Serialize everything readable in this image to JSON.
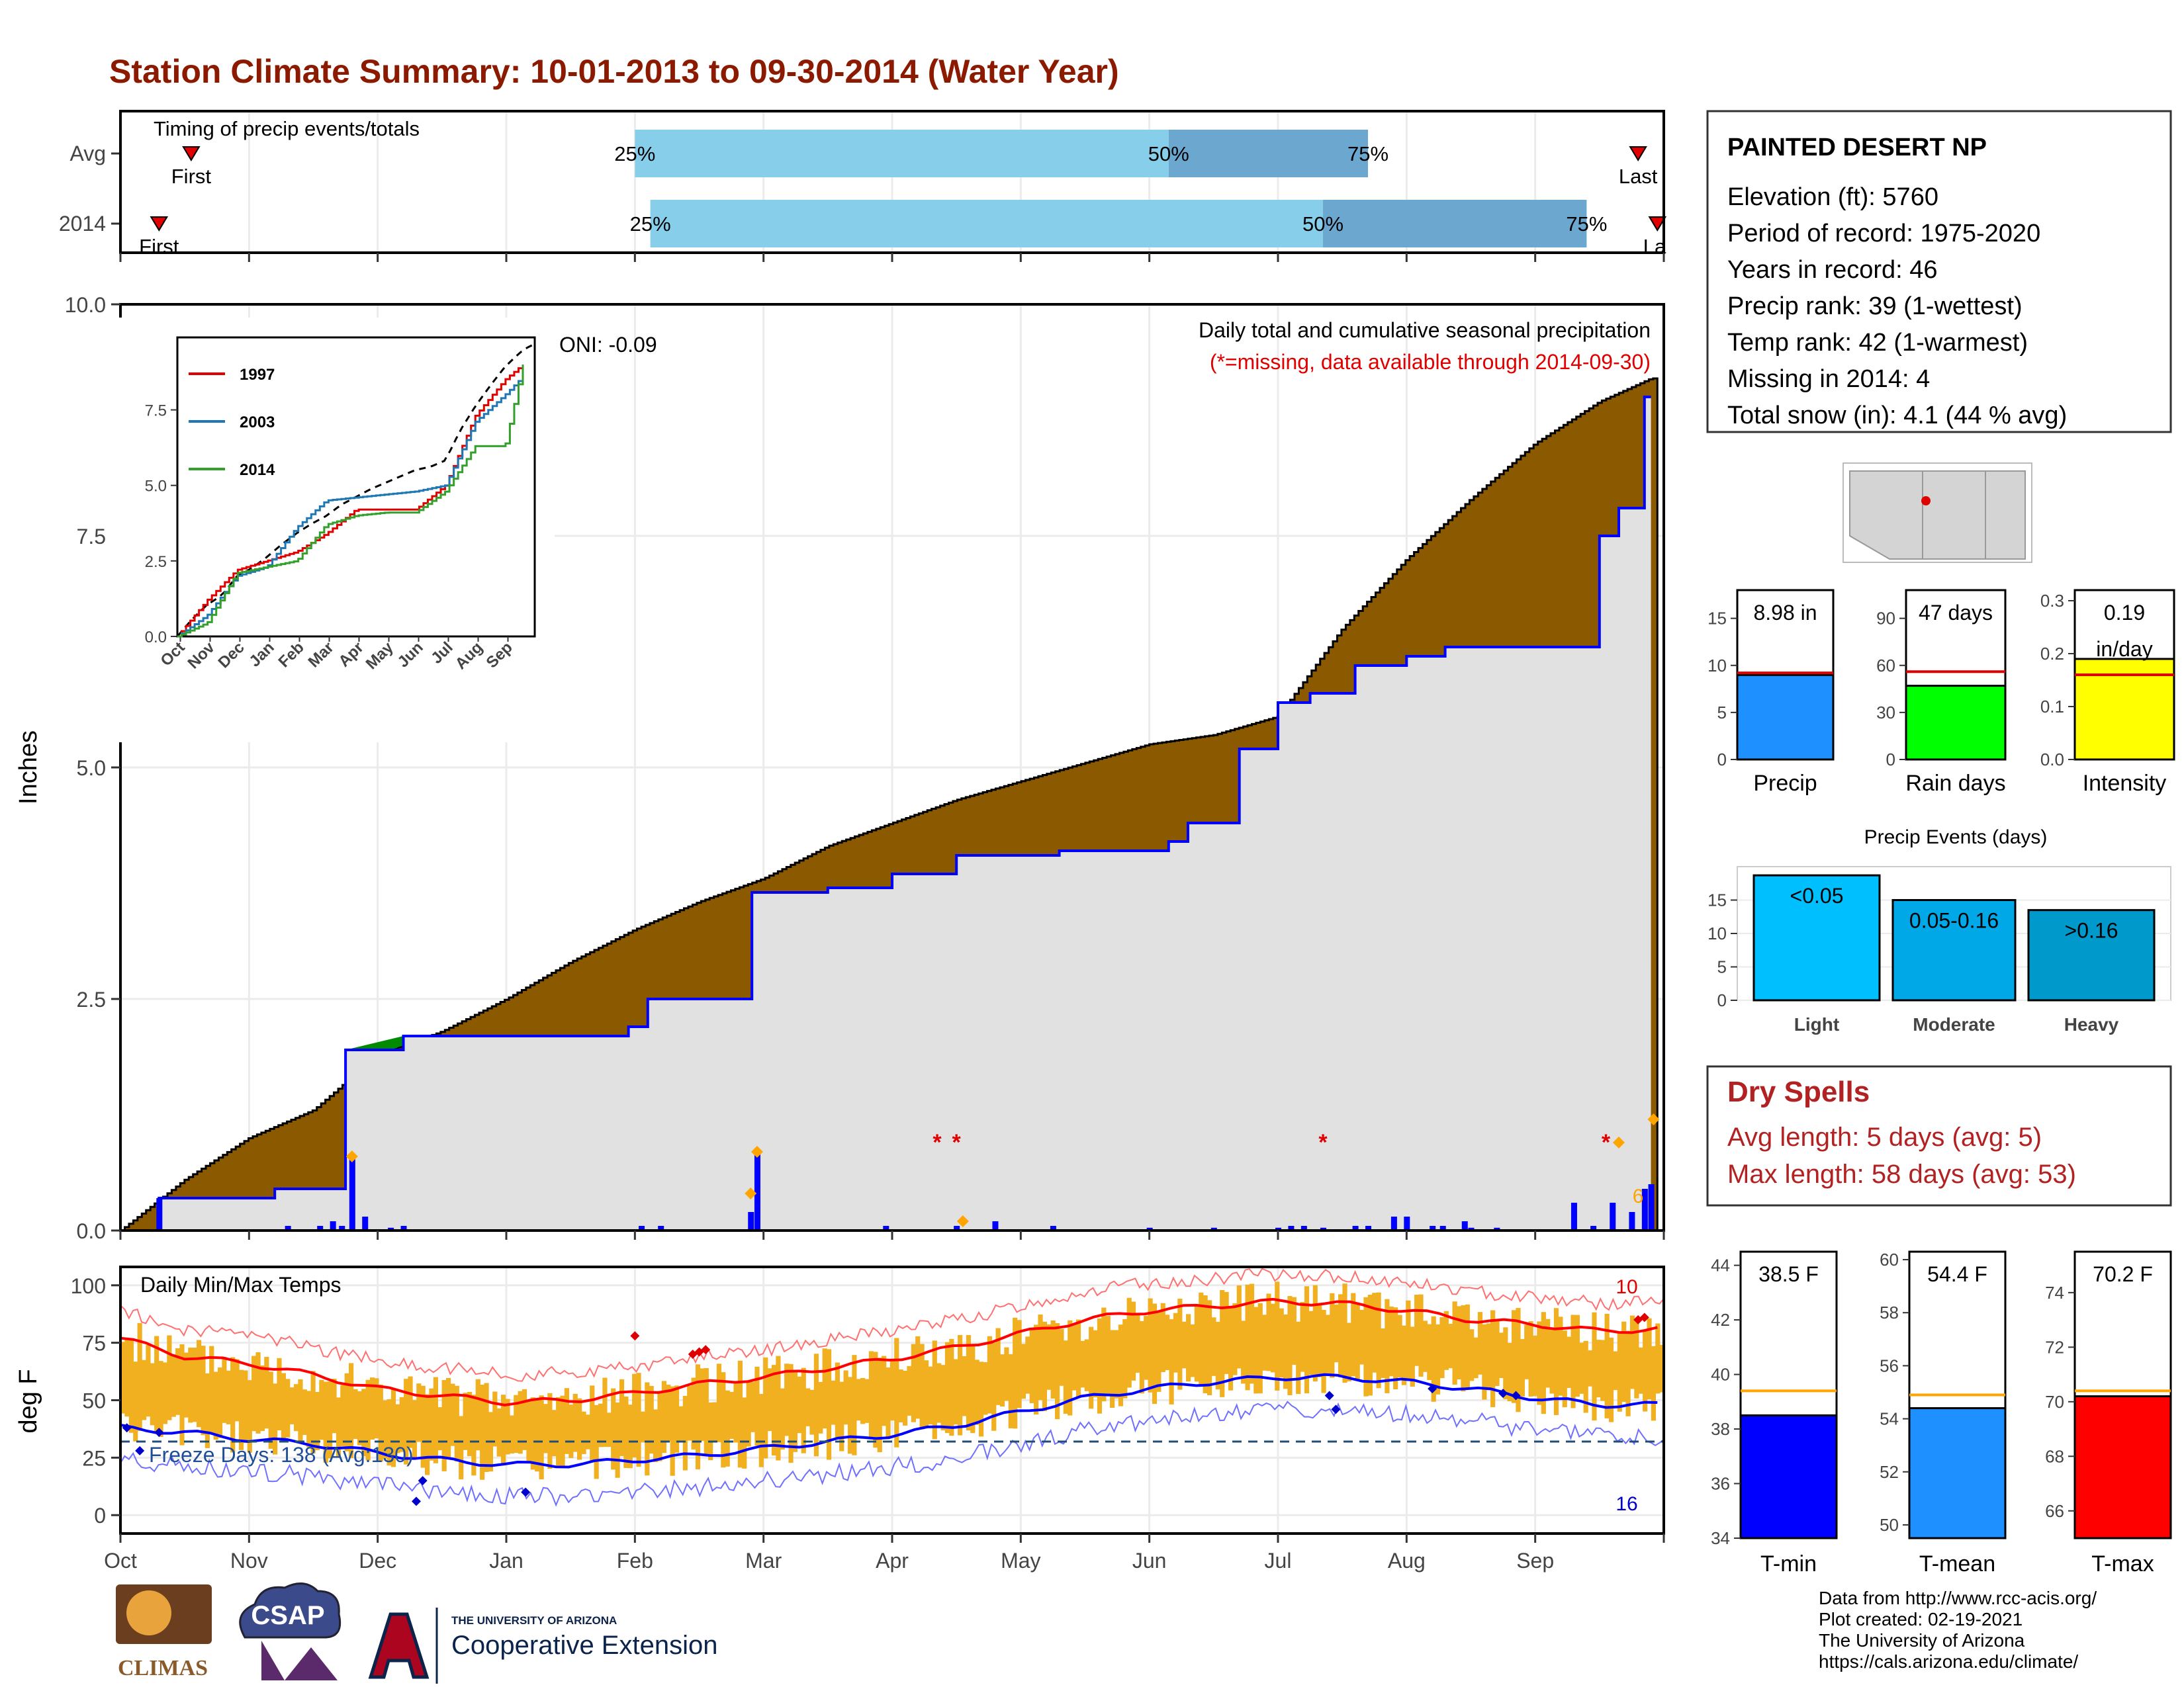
{
  "title": "Station Climate Summary: 10-01-2013 to 09-30-2014 (Water Year)",
  "colors": {
    "title": "#8B1A00",
    "cum_fill": "#8B5A00",
    "green_fill": "#008B00",
    "bg_fill": "#E1E1E1",
    "blue_line": "#0000FF",
    "light_blue": "#87CEEB",
    "mid_blue": "#6BA7CF",
    "tmax_line": "#FF0000",
    "tmin_line": "#0000FF",
    "bars_temp": "#F0B020",
    "dry_red": "#B22222"
  },
  "timing": {
    "label": "Timing of precip events/totals",
    "rows": [
      {
        "name": "Avg",
        "first_label": "First",
        "last_label": "Last",
        "p25": "25%",
        "p50": "50%",
        "p75": "75%",
        "first_month": 0.55,
        "p25_month": 4.0,
        "p50_month": 8.15,
        "p75_month": 9.7,
        "last_month": 11.8
      },
      {
        "name": "2014",
        "first_label": "First",
        "last_label": "La",
        "p25": "25%",
        "p50": "50%",
        "p75": "75%",
        "first_month": 0.3,
        "p25_month": 4.12,
        "p50_month": 9.35,
        "p75_month": 11.4,
        "last_month": 11.95
      }
    ]
  },
  "months": [
    "Oct",
    "Nov",
    "Dec",
    "Jan",
    "Feb",
    "Mar",
    "Apr",
    "May",
    "Jun",
    "Jul",
    "Aug",
    "Sep"
  ],
  "main": {
    "ylabel": "Inches",
    "yticks": [
      "0.0",
      "2.5",
      "5.0",
      "7.5",
      "10.0"
    ],
    "heading": "Daily total and cumulative seasonal precipitation",
    "subheading": "(*=missing, data available through 2014-09-30)",
    "oni": "ONI: -0.09",
    "count_label": "6"
  },
  "inset": {
    "legend": [
      "1997",
      "2003",
      "2014"
    ],
    "yticks": [
      "0.0",
      "2.5",
      "5.0",
      "7.5"
    ],
    "months": [
      "Oct",
      "Nov",
      "Dec",
      "Jan",
      "Feb",
      "Mar",
      "Apr",
      "May",
      "Jun",
      "Jul",
      "Aug",
      "Sep"
    ]
  },
  "temps": {
    "ylabel": "deg F",
    "label": "Daily Min/Max Temps",
    "yticks": [
      "0",
      "25",
      "50",
      "75",
      "100"
    ],
    "freeze": "Freeze Days: 138 (Avg:130)",
    "hot_count": "10",
    "cold_count": "16"
  },
  "station": {
    "name": "PAINTED DESERT NP",
    "lines": [
      "Elevation (ft): 5760",
      "Period of record: 1975-2020",
      "Years in record: 46",
      "Precip rank: 39 (1-wettest)",
      "Temp rank: 42 (1-warmest)",
      "Missing in 2014: 4",
      "Total snow (in): 4.1 (44 % avg)"
    ]
  },
  "summary_bars": [
    {
      "label": "Precip",
      "value_text": "8.98 in",
      "value": 8.98,
      "avg": 9.2,
      "max": 18,
      "ticks": [
        "0",
        "5",
        "10",
        "15"
      ],
      "tickvals": [
        0,
        5,
        10,
        15
      ],
      "color": "#1E90FF"
    },
    {
      "label": "Rain days",
      "value_text": "47 days",
      "value": 47,
      "avg": 56,
      "max": 108,
      "ticks": [
        "0",
        "30",
        "60",
        "90"
      ],
      "tickvals": [
        0,
        30,
        60,
        90
      ],
      "color": "#00FF00"
    },
    {
      "label": "Intensity",
      "value_text": "0.19",
      "value_text2": "in/day",
      "value": 0.19,
      "avg": 0.16,
      "max": 0.32,
      "ticks": [
        "0.0",
        "0.1",
        "0.2",
        "0.3"
      ],
      "tickvals": [
        0,
        0.1,
        0.2,
        0.3
      ],
      "color": "#FFFF00"
    }
  ],
  "events": {
    "title": "Precip Events (days)",
    "yticks": [
      "0",
      "5",
      "10",
      "15"
    ],
    "bars": [
      {
        "label": "Light",
        "value_label": "<0.05",
        "value": 18.7,
        "color": "#00BFFF"
      },
      {
        "label": "Moderate",
        "value_label": "0.05-0.16",
        "value": 15.0,
        "color": "#00A8E8"
      },
      {
        "label": "Heavy",
        "value_label": ">0.16",
        "value": 13.5,
        "color": "#0099CC"
      }
    ]
  },
  "dry": {
    "title": "Dry Spells",
    "avg": "Avg length: 5 days (avg: 5)",
    "max": "Max length: 58 days (avg: 53)"
  },
  "temp_bars": [
    {
      "label": "T-min",
      "value_text": "38.5 F",
      "value": 38.5,
      "avg": 39.4,
      "min": 34,
      "max": 44.5,
      "ticks": [
        "34",
        "36",
        "38",
        "40",
        "42",
        "44"
      ],
      "tickvals": [
        34,
        36,
        38,
        40,
        42,
        44
      ],
      "color": "#0000FF"
    },
    {
      "label": "T-mean",
      "value_text": "54.4 F",
      "value": 54.4,
      "avg": 54.9,
      "min": 49.5,
      "max": 60.3,
      "ticks": [
        "50",
        "52",
        "54",
        "56",
        "58",
        "60"
      ],
      "tickvals": [
        50,
        52,
        54,
        56,
        58,
        60
      ],
      "color": "#1E90FF"
    },
    {
      "label": "T-max",
      "value_text": "70.2 F",
      "value": 70.2,
      "avg": 70.4,
      "min": 65,
      "max": 75.5,
      "ticks": [
        "66",
        "68",
        "70",
        "72",
        "74"
      ],
      "tickvals": [
        66,
        68,
        70,
        72,
        74
      ],
      "color": "#FF0000"
    }
  ],
  "footer": [
    "Data from http://www.rcc-acis.org/",
    "Plot created: 02-19-2021",
    "The University of Arizona",
    "https://cals.arizona.edu/climate/"
  ],
  "logos": {
    "climas": "CLIMAS",
    "csap": "CSAP",
    "ua_small": "THE UNIVERSITY OF ARIZONA",
    "ua_big": "Cooperative Extension"
  },
  "chart_data": [
    {
      "type": "area",
      "title": "Daily total and cumulative seasonal precipitation",
      "ylabel": "Inches",
      "ylim": [
        0,
        10
      ],
      "x_unit": "month index from Oct 1",
      "series": [
        {
          "name": "2014",
          "x": [
            0,
            0.3,
            1.0,
            1.2,
            1.7,
            1.75,
            2.2,
            3.05,
            3.95,
            4.1,
            4.9,
            4.91,
            5.4,
            5.5,
            6.0,
            6.5,
            7.3,
            8.0,
            8.15,
            8.3,
            8.7,
            9.0,
            9.25,
            9.35,
            9.6,
            10.0,
            10.3,
            10.5,
            10.7,
            11.3,
            11.35,
            11.5,
            11.65,
            11.85,
            11.9
          ],
          "y": [
            0,
            0.35,
            0.35,
            0.45,
            0.45,
            1.95,
            2.1,
            2.1,
            2.2,
            2.5,
            2.5,
            3.65,
            3.65,
            3.7,
            3.85,
            4.05,
            4.1,
            4.1,
            4.2,
            4.4,
            5.2,
            5.7,
            5.8,
            5.8,
            6.1,
            6.2,
            6.3,
            6.3,
            6.3,
            6.3,
            6.3,
            7.5,
            7.8,
            9.0,
            9.0
          ]
        },
        {
          "name": "Avg",
          "x": [
            0,
            0.5,
            1,
            1.5,
            2,
            2.5,
            3,
            3.5,
            4,
            4.5,
            5,
            5.5,
            6,
            6.5,
            7,
            7.5,
            8,
            8.5,
            9,
            9.5,
            10,
            10.5,
            11,
            11.5,
            11.9
          ],
          "y": [
            0,
            0.55,
            1.0,
            1.3,
            1.9,
            2.15,
            2.5,
            2.9,
            3.25,
            3.55,
            3.8,
            4.15,
            4.4,
            4.65,
            4.85,
            5.05,
            5.25,
            5.35,
            5.55,
            6.5,
            7.25,
            7.9,
            8.5,
            8.95,
            9.2
          ]
        }
      ]
    },
    {
      "type": "line",
      "title": "",
      "series": [
        {
          "name": "1997",
          "x": [
            0,
            1,
            2,
            3,
            4,
            5,
            6,
            7,
            8,
            9,
            10,
            11,
            11.6
          ],
          "y": [
            0,
            1.2,
            2.2,
            2.5,
            2.8,
            3.4,
            4.2,
            4.2,
            4.2,
            5.0,
            7.3,
            8.5,
            9.0
          ]
        },
        {
          "name": "2003",
          "x": [
            0,
            1,
            2,
            3,
            4,
            5,
            6,
            7,
            8,
            9,
            10,
            11,
            11.6
          ],
          "y": [
            0,
            0.7,
            2.0,
            2.3,
            3.6,
            4.5,
            4.6,
            4.7,
            4.8,
            5.0,
            7.1,
            8.0,
            8.6
          ]
        },
        {
          "name": "2014",
          "x": [
            0,
            1,
            2,
            3,
            4,
            5,
            6,
            7,
            8,
            9,
            10,
            11,
            11.6
          ],
          "y": [
            0,
            0.45,
            2.1,
            2.3,
            2.5,
            3.7,
            4.0,
            4.1,
            4.1,
            4.8,
            6.3,
            6.3,
            9.0
          ]
        }
      ]
    },
    {
      "type": "line",
      "title": "Daily Min/Max Temps",
      "ylabel": "deg F",
      "ylim": [
        -8,
        108
      ],
      "series": [
        {
          "name": "Avg max",
          "x": [
            0,
            0.5,
            1,
            1.5,
            2,
            2.5,
            3,
            3.5,
            4,
            4.5,
            5,
            5.5,
            6,
            6.5,
            7,
            7.5,
            8,
            8.5,
            9,
            9.5,
            10,
            10.5,
            11,
            11.5,
            11.95
          ],
          "y": [
            77,
            69,
            66,
            61,
            55,
            52,
            49,
            50,
            53,
            57,
            60,
            64,
            68,
            73,
            79,
            85,
            89,
            91,
            93,
            92,
            89,
            85,
            83,
            80,
            81
          ]
        },
        {
          "name": "Avg min",
          "x": [
            0,
            0.5,
            1,
            1.5,
            2,
            2.5,
            3,
            3.5,
            4,
            4.5,
            5,
            5.5,
            6,
            6.5,
            7,
            7.5,
            8,
            8.5,
            9,
            9.5,
            10,
            10.5,
            11,
            11.5,
            11.95
          ],
          "y": [
            38,
            36,
            33,
            31,
            27,
            24,
            22,
            22,
            24,
            26,
            29,
            32,
            35,
            39,
            45,
            51,
            55,
            58,
            60,
            60,
            58,
            55,
            51,
            48,
            48
          ]
        }
      ]
    },
    {
      "type": "bar",
      "categories": [
        "Precip",
        "Rain days",
        "Intensity"
      ],
      "values": [
        8.98,
        47,
        0.19
      ]
    },
    {
      "type": "bar",
      "title": "Precip Events (days)",
      "categories": [
        "Light",
        "Moderate",
        "Heavy"
      ],
      "values": [
        18.7,
        15.0,
        13.5
      ]
    },
    {
      "type": "bar",
      "categories": [
        "T-min",
        "T-mean",
        "T-max"
      ],
      "values": [
        38.5,
        54.4,
        70.2
      ]
    }
  ]
}
